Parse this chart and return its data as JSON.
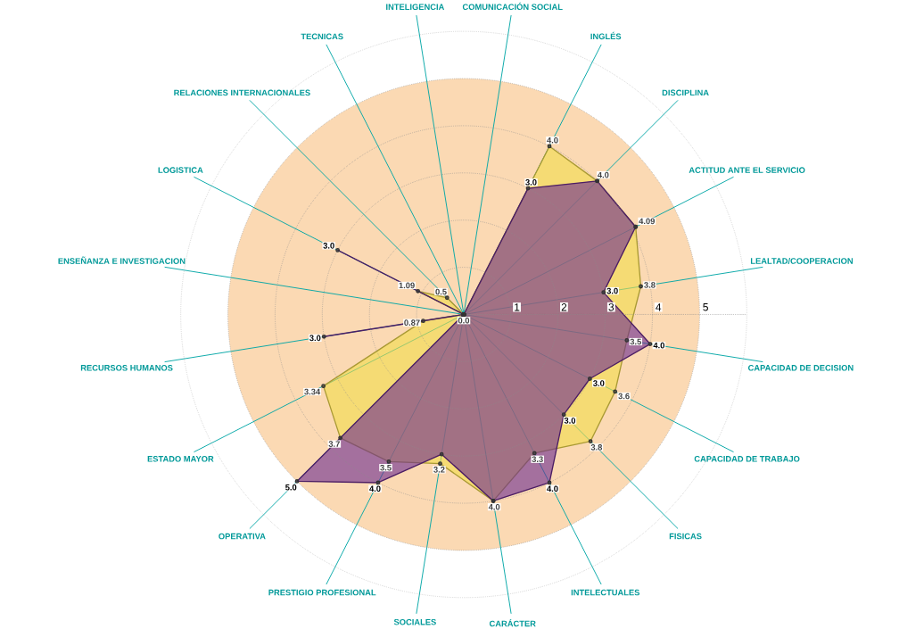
{
  "chart_data": {
    "type": "radar",
    "categories": [
      "COMUNICACIÓN SOCIAL",
      "INGLÉS",
      "DISCIPLINA",
      "ACTITUD ANTE EL SERVICIO",
      "LEALTAD/COOPERACION",
      "CAPACIDAD DE DECISION",
      "CAPACIDAD DE TRABAJO",
      "FISICAS",
      "INTELECTUALES",
      "CARÁCTER",
      "SOCIALES",
      "PRESTIGIO PROFESIONAL",
      "OPERATIVA",
      "ESTADO MAYOR",
      "RECURSOS HUMANOS",
      "ENSEÑANZA E INVESTIGACION",
      "LOGISTICA",
      "RELACIONES INTERNACIONALES",
      "TECNICAS",
      "INTELIGENCIA"
    ],
    "ylim": [
      0,
      6
    ],
    "yticks": [
      1,
      2,
      3,
      4,
      5
    ],
    "grid": true,
    "marker": "circle",
    "series": [
      {
        "color": "#f2dc4a",
        "values": [
          0,
          4.0,
          4.0,
          4.09,
          3.8,
          3.5,
          3.6,
          3.8,
          3.3,
          4.0,
          3.2,
          3.5,
          3.7,
          3.34,
          0.87,
          0,
          1.09,
          0.5,
          0,
          0
        ],
        "value_labels": [
          "0.0",
          "4.0",
          "4.0",
          "4.09",
          "3.8",
          "3.5",
          "3.6",
          "3.8",
          "3.3",
          "4.0",
          "3.2",
          "3.5",
          "3.7",
          "3.34",
          "0.87",
          null,
          "1.09",
          "0.5",
          null,
          null
        ]
      },
      {
        "color": "#6b2a8f",
        "values": [
          0,
          3.0,
          4.0,
          4.09,
          3.0,
          4.0,
          3.0,
          3.0,
          4.0,
          4.0,
          3.0,
          4.0,
          5.0,
          0,
          3.0,
          0,
          3.0,
          0,
          0,
          0
        ],
        "value_labels": [
          null,
          "3.0",
          null,
          null,
          "3.0",
          "4.0",
          "3.0",
          "3.0",
          "4.0",
          null,
          null,
          "4.0",
          "5.0",
          null,
          "3.0",
          null,
          "3.0",
          null,
          null,
          null
        ]
      }
    ]
  }
}
